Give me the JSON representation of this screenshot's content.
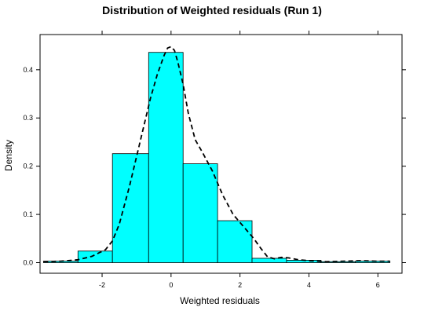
{
  "chart_data": {
    "type": "histogram",
    "title": "Distribution of Weighted residuals (Run 1)",
    "xlabel": "Weighted residuals",
    "ylabel": "Density",
    "xlim": [
      -3.8,
      6.7
    ],
    "ylim": [
      -0.022,
      0.473
    ],
    "x_ticks": [
      -2,
      0,
      2,
      4,
      6
    ],
    "y_ticks": [
      0.0,
      0.1,
      0.2,
      0.3,
      0.4
    ],
    "x_tick_labels": [
      "-2",
      "0",
      "2",
      "4",
      "6"
    ],
    "y_tick_labels": [
      "0.0",
      "0.1",
      "0.2",
      "0.3",
      "0.4"
    ],
    "grid": false,
    "bins": [
      {
        "x0": -3.7,
        "x1": -2.7,
        "density": 0.003
      },
      {
        "x0": -2.7,
        "x1": -1.7,
        "density": 0.024
      },
      {
        "x0": -1.7,
        "x1": -0.65,
        "density": 0.226
      },
      {
        "x0": -0.65,
        "x1": 0.35,
        "density": 0.436
      },
      {
        "x0": 0.35,
        "x1": 1.35,
        "density": 0.205
      },
      {
        "x0": 1.35,
        "x1": 2.35,
        "density": 0.087
      },
      {
        "x0": 2.35,
        "x1": 3.35,
        "density": 0.009
      },
      {
        "x0": 3.35,
        "x1": 4.35,
        "density": 0.005
      },
      {
        "x0": 4.35,
        "x1": 5.35,
        "density": 0.002
      },
      {
        "x0": 5.35,
        "x1": 6.35,
        "density": 0.003
      }
    ],
    "density_curve": {
      "x": [
        -3.7,
        -3.2,
        -2.7,
        -2.3,
        -1.9,
        -1.7,
        -1.5,
        -1.2,
        -0.9,
        -0.6,
        -0.4,
        -0.2,
        -0.1,
        0.0,
        0.1,
        0.2,
        0.35,
        0.5,
        0.7,
        0.9,
        1.2,
        1.5,
        1.8,
        2.1,
        2.4,
        2.6,
        2.8,
        3.0,
        3.2,
        3.4,
        3.7,
        4.0,
        4.5,
        5.0,
        5.5,
        6.0,
        6.35
      ],
      "y": [
        0.002,
        0.003,
        0.006,
        0.013,
        0.027,
        0.045,
        0.08,
        0.16,
        0.25,
        0.34,
        0.39,
        0.43,
        0.445,
        0.448,
        0.44,
        0.415,
        0.37,
        0.31,
        0.255,
        0.23,
        0.19,
        0.14,
        0.1,
        0.075,
        0.05,
        0.03,
        0.012,
        0.008,
        0.011,
        0.01,
        0.006,
        0.004,
        0.002,
        0.003,
        0.004,
        0.003,
        0.003
      ]
    },
    "colors": {
      "bar_fill": "#00ffff",
      "bar_stroke": "#000000",
      "curve": "#000000",
      "frame": "#000000"
    }
  }
}
